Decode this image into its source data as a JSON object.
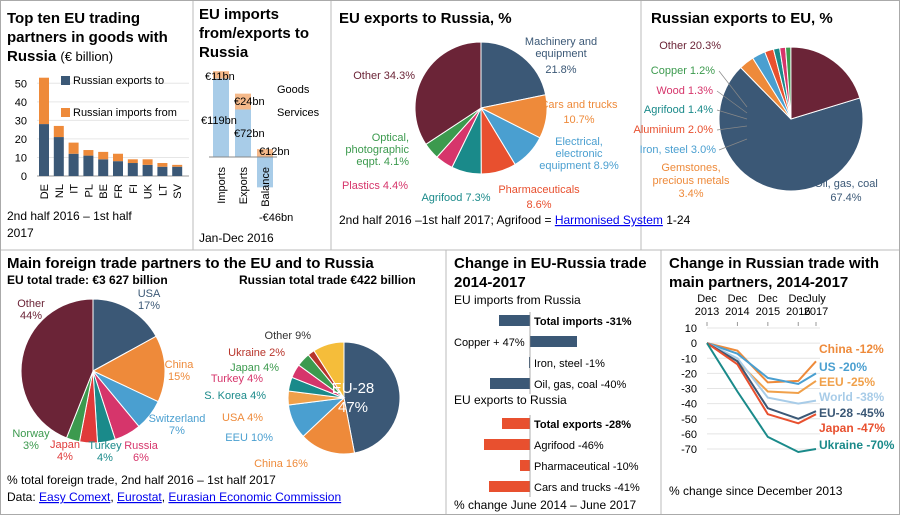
{
  "colors": {
    "navy": "#3b5876",
    "orange": "#ee8a3a",
    "teal": "#1a8a8a",
    "blue": "#4a9fd0",
    "green": "#3c9a4e",
    "red": "#e03a3a",
    "pink": "#d6356b",
    "maroon": "#6b2437",
    "darkred": "#b8352b",
    "orangered": "#e8502f",
    "lightblue": "#a8cce8",
    "peach": "#f5b98a",
    "gold": "#f5bd3a",
    "darkgreen": "#2c6e3a",
    "link": "#0000ee"
  },
  "panel1": {
    "title_lines": [
      "Top ten EU trading",
      "partners in goods with"
    ],
    "title_last": "Russia",
    "unit": "(€ billion)",
    "footer_lines": [
      "2nd half 2016 – 1st half",
      "2017"
    ],
    "chart_data": {
      "type": "bar",
      "categories": [
        "DE",
        "NL",
        "IT",
        "PL",
        "BE",
        "FR",
        "FI",
        "UK",
        "LT",
        "SV"
      ],
      "series": [
        {
          "name": "Russian exports to",
          "values": [
            28,
            21,
            12,
            11,
            9,
            8,
            7,
            6,
            5,
            5
          ]
        },
        {
          "name": "Russian imports from",
          "values": [
            25,
            6,
            6,
            3,
            4,
            4,
            2,
            3,
            2,
            1
          ]
        }
      ],
      "yticks": [
        "50",
        "40",
        "30",
        "20",
        "10",
        "0"
      ],
      "ylim": [
        0,
        55
      ]
    }
  },
  "panel2": {
    "title_lines": [
      "EU imports",
      "from/exports to",
      "Russia"
    ],
    "footer": "Jan-Dec 2016",
    "chart_data": {
      "type": "bar",
      "categories": [
        "Imports",
        "Exports",
        "Balance"
      ],
      "series": [
        {
          "name": "Goods",
          "values": [
            119,
            72,
            -46
          ]
        },
        {
          "name": "Services",
          "values": [
            11,
            24,
            12
          ]
        }
      ],
      "labels": {
        "imports_services": "€11bn",
        "imports_goods": "€119bn",
        "exports_services": "€24bn",
        "exports_goods": "€72bn",
        "balance_services": "€12bn",
        "balance_goods": "-€46bn"
      }
    }
  },
  "panel3": {
    "title": "EU exports to Russia, %",
    "footer_prefix": "2nd half 2016 –1st half 2017; Agrifood = ",
    "footer_link": "Harmonised System",
    "footer_suffix": " 1-24",
    "chart_data": {
      "type": "pie",
      "slices": [
        {
          "name": "Machinery and equipment",
          "label_lines": [
            "Machinery and",
            "equipment"
          ],
          "value_label": "21.8%",
          "value": 21.8
        },
        {
          "name": "Cars and trucks",
          "label_lines": [
            "Cars and trucks"
          ],
          "value_label": "10.7%",
          "value": 10.7
        },
        {
          "name": "Electrical, electronic equipment",
          "label_lines": [
            "Electrical,",
            "electronic",
            "equipment 8.9%"
          ],
          "value_label": "",
          "value": 8.9
        },
        {
          "name": "Pharmaceuticals",
          "label_lines": [
            "Pharmaceuticals"
          ],
          "value_label": "8.6%",
          "value": 8.6
        },
        {
          "name": "Agrifood",
          "label_lines": [
            "Agrifood 7.3%"
          ],
          "value_label": "",
          "value": 7.3
        },
        {
          "name": "Plastics",
          "label_lines": [
            "Plastics 4.4%"
          ],
          "value_label": "",
          "value": 4.4
        },
        {
          "name": "Optical, photographic eqpt.",
          "label_lines": [
            "Optical,",
            "photographic",
            "eqpt. 4.1%"
          ],
          "value_label": "",
          "value": 4.1
        },
        {
          "name": "Other",
          "label_lines": [
            "Other 34.3%"
          ],
          "value_label": "",
          "value": 34.3
        }
      ]
    }
  },
  "panel4": {
    "title": "Russian exports to EU, %",
    "chart_data": {
      "type": "pie",
      "slices": [
        {
          "name": "Oil, gas, coal",
          "label_lines": [
            "Oil, gas, coal",
            "67.4%"
          ],
          "value": 67.4
        },
        {
          "name": "Gemstones, precious metals",
          "label_lines": [
            "Gemstones,",
            "precious metals",
            "3.4%"
          ],
          "value": 3.4
        },
        {
          "name": "Iron, steel",
          "label_lines": [
            "Iron, steel 3.0%"
          ],
          "value": 3.0
        },
        {
          "name": "Aluminium",
          "label_lines": [
            "Aluminium 2.0%"
          ],
          "value": 2.0
        },
        {
          "name": "Agrifood",
          "label_lines": [
            "Agrifood 1.4%"
          ],
          "value": 1.4
        },
        {
          "name": "Wood",
          "label_lines": [
            "Wood 1.3%"
          ],
          "value": 1.3
        },
        {
          "name": "Copper",
          "label_lines": [
            "Copper 1.2%"
          ],
          "value": 1.2
        },
        {
          "name": "Other",
          "label_lines": [
            "Other 20.3%"
          ],
          "value": 20.3
        }
      ]
    }
  },
  "panel5": {
    "title": "Main foreign trade partners to the EU and to Russia",
    "eu_subtitle": "EU total trade: €3 627 billion",
    "ru_subtitle": "Russian total trade €422 billion",
    "footer": "% total foreign trade, 2nd half 2016 – 1st half 2017",
    "source_prefix": "Data: ",
    "source_links": [
      "Easy Comext",
      "Eurostat",
      "Eurasian Economic Commission"
    ],
    "chart_data": [
      {
        "type": "pie",
        "slices": [
          {
            "name": "USA",
            "label_lines": [
              "USA",
              "17%"
            ],
            "value": 17
          },
          {
            "name": "China",
            "label_lines": [
              "China",
              "15%"
            ],
            "value": 15
          },
          {
            "name": "Switzerland",
            "label_lines": [
              "Switzerland",
              "7%"
            ],
            "value": 7
          },
          {
            "name": "Russia",
            "label_lines": [
              "Russia",
              "6%"
            ],
            "value": 6
          },
          {
            "name": "Turkey",
            "label_lines": [
              "Turkey",
              "4%"
            ],
            "value": 4
          },
          {
            "name": "Japan",
            "label_lines": [
              "Japan",
              "4%"
            ],
            "value": 4
          },
          {
            "name": "Norway",
            "label_lines": [
              "Norway",
              "3%"
            ],
            "value": 3
          },
          {
            "name": "Other",
            "label_lines": [
              "Other",
              "44%"
            ],
            "value": 44
          }
        ]
      },
      {
        "type": "pie",
        "slices": [
          {
            "name": "EU-28",
            "label_lines": [
              "EU-28",
              "47%"
            ],
            "value": 47
          },
          {
            "name": "China",
            "label_lines": [
              "China 16%"
            ],
            "value": 16
          },
          {
            "name": "EEU",
            "label_lines": [
              "EEU 10%"
            ],
            "value": 10
          },
          {
            "name": "USA",
            "label_lines": [
              "USA 4%"
            ],
            "value": 4
          },
          {
            "name": "S. Korea",
            "label_lines": [
              "S. Korea 4%"
            ],
            "value": 4
          },
          {
            "name": "Turkey",
            "label_lines": [
              "Turkey 4%"
            ],
            "value": 4
          },
          {
            "name": "Japan",
            "label_lines": [
              "Japan 4%"
            ],
            "value": 4
          },
          {
            "name": "Ukraine",
            "label_lines": [
              "Ukraine 2%"
            ],
            "value": 2
          },
          {
            "name": "Other",
            "label_lines": [
              "Other 9%"
            ],
            "value": 9
          }
        ]
      }
    ]
  },
  "panel6": {
    "title_lines": [
      "Change in EU-Russia trade",
      "2014-2017"
    ],
    "section1": "EU imports from Russia",
    "section2": "EU exports to Russia",
    "footer": "% change June 2014 – June 2017",
    "chart_data": {
      "type": "bar",
      "orientation": "horizontal",
      "xlim": [
        -50,
        50
      ],
      "groups": [
        {
          "items": [
            {
              "label": "Total imports -31%",
              "value": -31,
              "bold": true
            },
            {
              "label": "Copper + 47%",
              "value": 47,
              "bold": false
            },
            {
              "label": "Iron, steel -1%",
              "value": -1,
              "bold": false
            },
            {
              "label": "Oil, gas, coal -40%",
              "value": -40,
              "bold": false
            }
          ]
        },
        {
          "items": [
            {
              "label": "Total exports -28%",
              "value": -28,
              "bold": true
            },
            {
              "label": "Agrifood -46%",
              "value": -46,
              "bold": false
            },
            {
              "label": "Pharmaceutical -10%",
              "value": -10,
              "bold": false
            },
            {
              "label": "Cars and trucks -41%",
              "value": -41,
              "bold": false
            }
          ]
        }
      ]
    }
  },
  "panel7": {
    "title_lines": [
      "Change in Russian trade with",
      "main partners, 2014-2017"
    ],
    "footer": "% change since December 2013",
    "chart_data": {
      "type": "line",
      "x_labels": [
        [
          "Dec",
          "2013"
        ],
        [
          "Dec",
          "2014"
        ],
        [
          "Dec",
          "2015"
        ],
        [
          "Dec",
          "2016"
        ],
        [
          "July",
          "2017"
        ]
      ],
      "x": [
        0,
        12,
        24,
        36,
        43
      ],
      "ylim": [
        -75,
        10
      ],
      "yticks": [
        10,
        0,
        -10,
        -20,
        -30,
        -40,
        -50,
        -60,
        -70
      ],
      "series": [
        {
          "name": "China -12%",
          "values": [
            0,
            -5,
            -26,
            -25,
            -12
          ]
        },
        {
          "name": "US -20%",
          "values": [
            0,
            -7,
            -23,
            -27,
            -20
          ]
        },
        {
          "name": "EEU -25%",
          "values": [
            0,
            -12,
            -32,
            -33,
            -25
          ]
        },
        {
          "name": "World -38%",
          "values": [
            0,
            -10,
            -36,
            -40,
            -38
          ]
        },
        {
          "name": "EU-28 -45%",
          "values": [
            0,
            -12,
            -43,
            -50,
            -45
          ]
        },
        {
          "name": "Japan -47%",
          "values": [
            0,
            -14,
            -47,
            -53,
            -47
          ]
        },
        {
          "name": "Ukraine -70%",
          "values": [
            0,
            -32,
            -62,
            -72,
            -70
          ]
        }
      ]
    }
  }
}
